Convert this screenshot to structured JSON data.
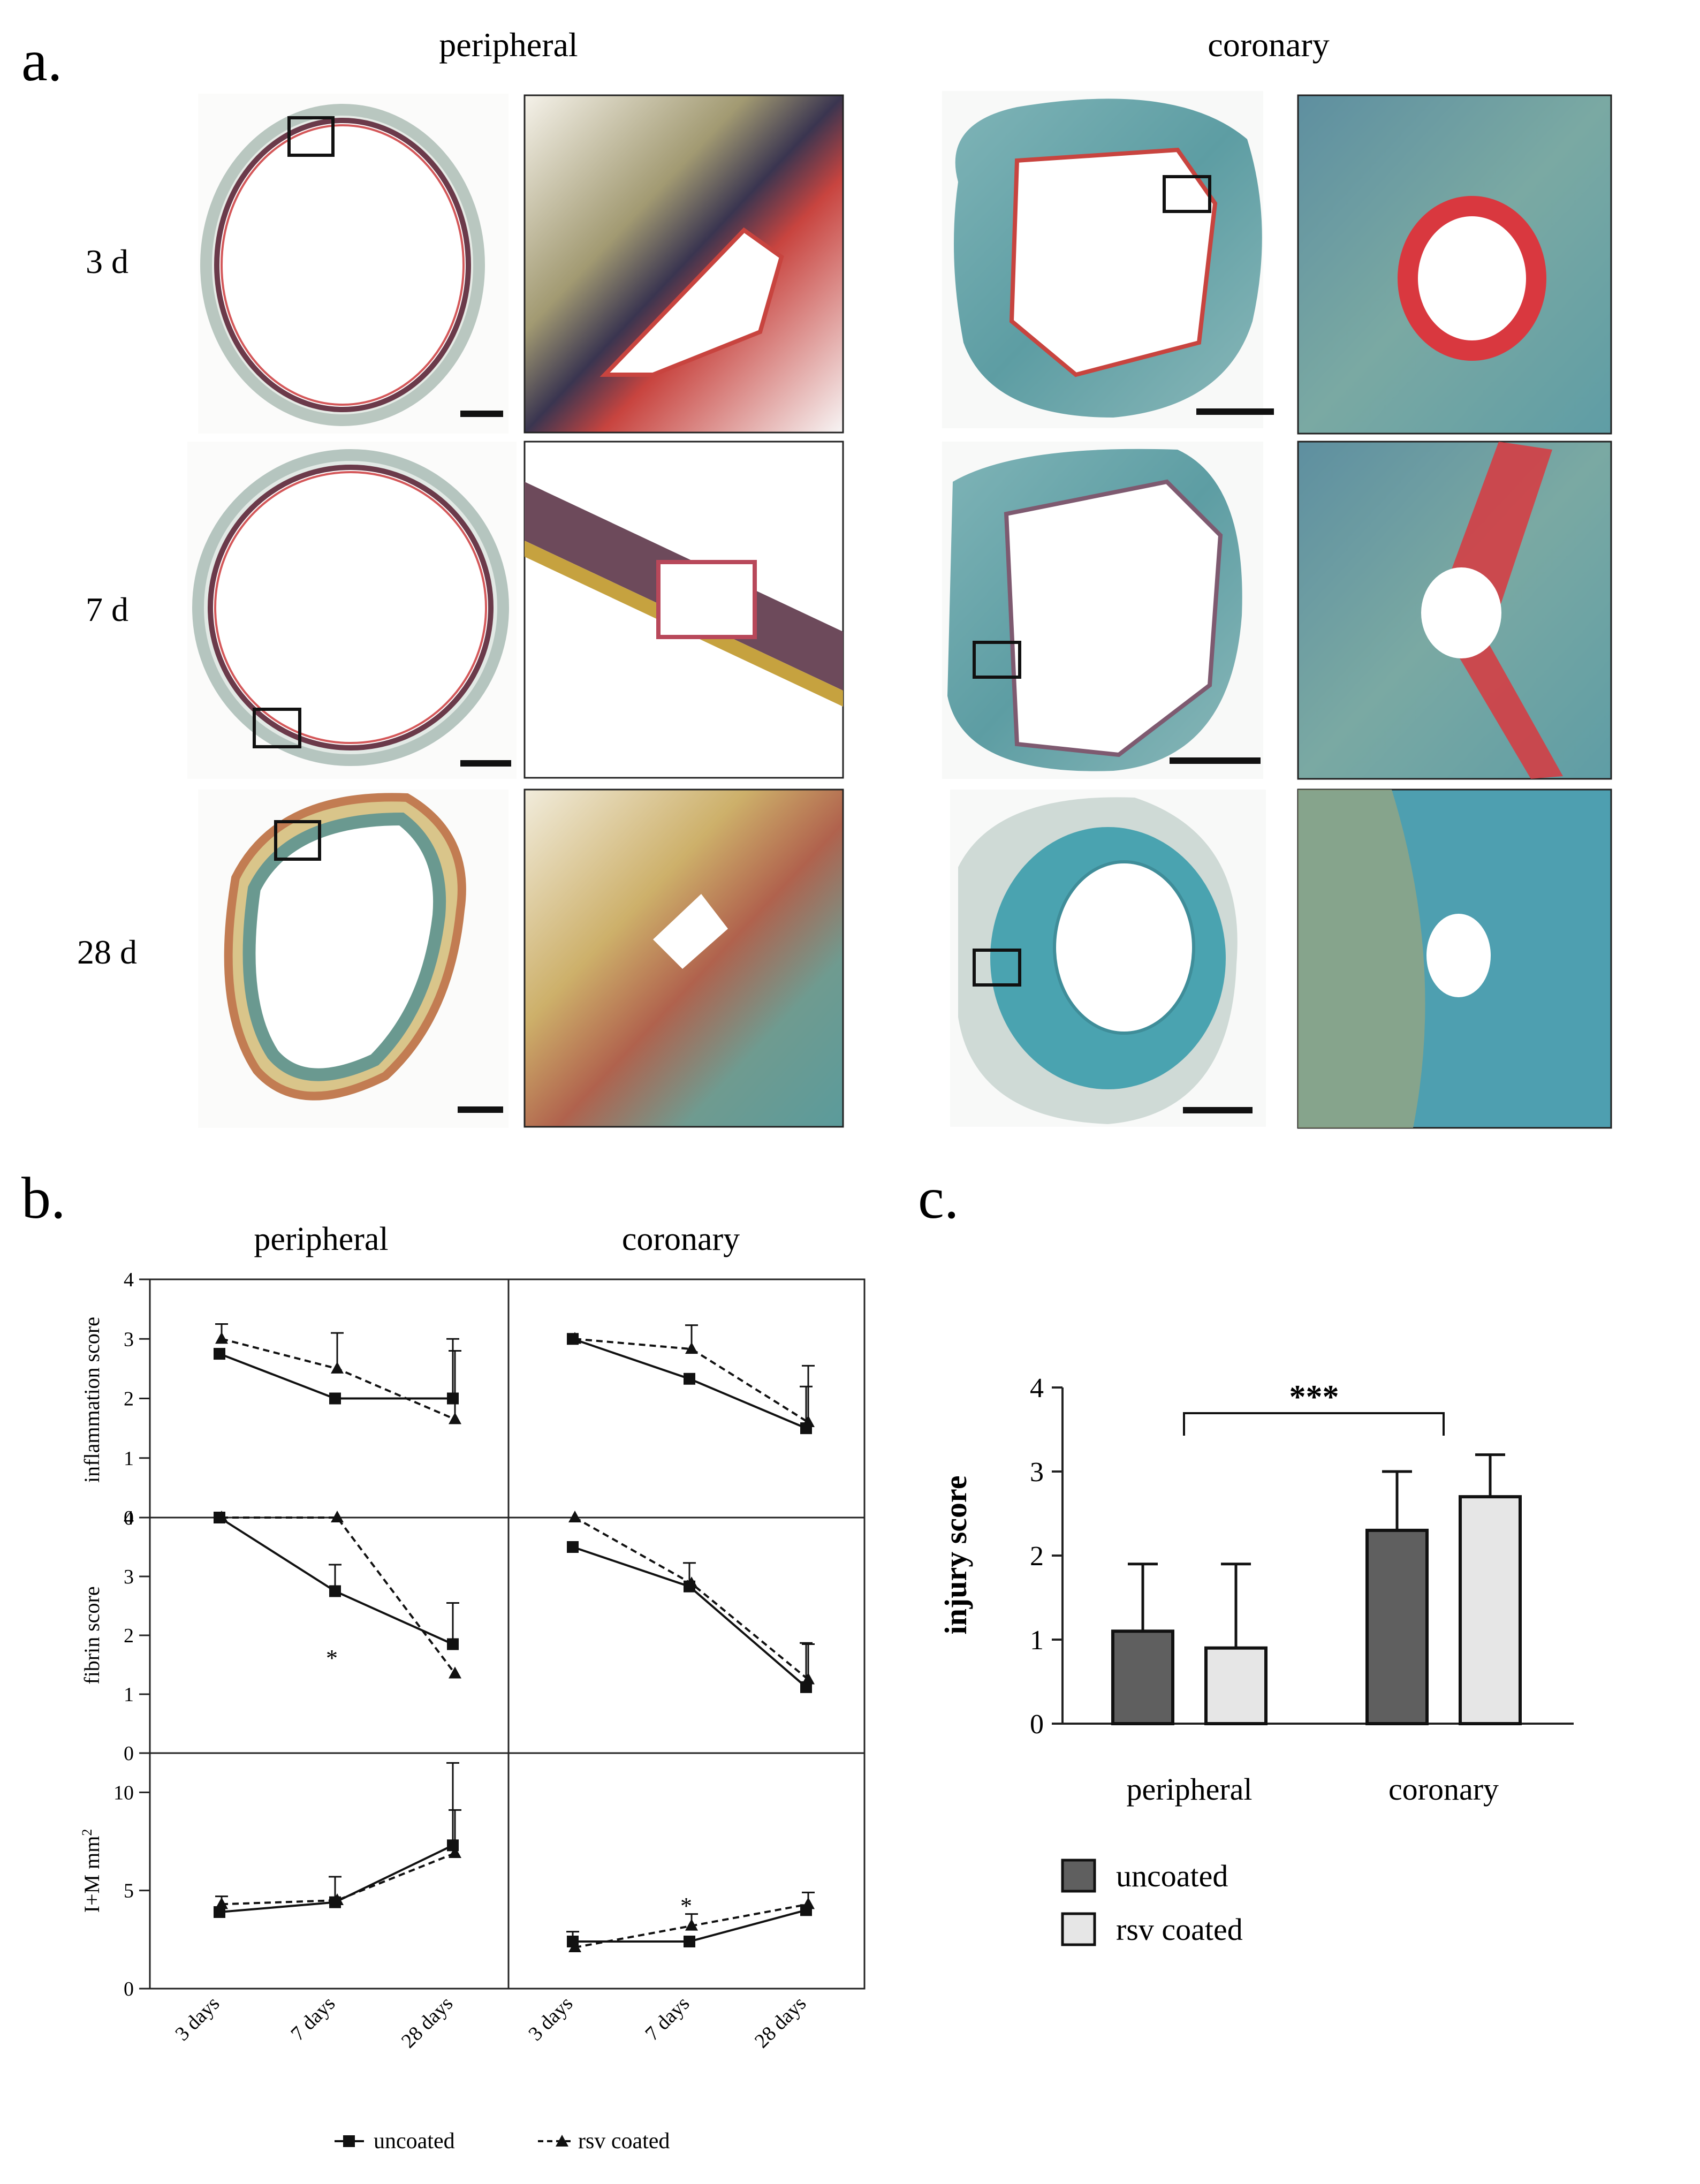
{
  "panel_a": {
    "label": "a.",
    "column_headers": [
      "peripheral",
      "coronary"
    ],
    "row_labels": [
      "3 d",
      "7 d",
      "28 d"
    ]
  },
  "panel_b": {
    "label": "b.",
    "column_headers": [
      "peripheral",
      "coronary"
    ],
    "x_ticks": [
      "3 days",
      "7 days",
      "28 days"
    ],
    "rows": [
      {
        "ylabel": "inflammation score",
        "yticks": [
          "0",
          "1",
          "2",
          "3",
          "4"
        ],
        "ylim": [
          0,
          4
        ]
      },
      {
        "ylabel": "fibrin score",
        "yticks": [
          "0",
          "1",
          "2",
          "3",
          "4"
        ],
        "ylim": [
          0,
          4
        ]
      },
      {
        "ylabel": "I+M mm",
        "ylabel_sup": "2",
        "yticks": [
          "0",
          "5",
          "10"
        ],
        "ylim": [
          0,
          12
        ]
      }
    ],
    "legend": {
      "uncoated": "uncoated",
      "rsv_coated": "rsv coated"
    },
    "annotation": "*"
  },
  "panel_c": {
    "label": "c.",
    "ylabel": "injury score",
    "yticks": [
      "0",
      "1",
      "2",
      "3",
      "4"
    ],
    "significance": "***",
    "legend": {
      "uncoated": "uncoated",
      "rsv_coated": "rsv coated"
    }
  },
  "colors": {
    "uncoated_bar": "#5f5f5f",
    "rsv_bar": "#e6e6e6",
    "line": "#111111",
    "panel_border": "#222222"
  },
  "chart_data": [
    {
      "type": "line",
      "panel": "b",
      "subpanel": "peripheral",
      "ylabel": "inflammation score",
      "categories": [
        "3 days",
        "7 days",
        "28 days"
      ],
      "ylim": [
        0,
        4
      ],
      "series": [
        {
          "name": "uncoated",
          "values": [
            2.75,
            2.0,
            2.0
          ],
          "err": [
            0.0,
            0.0,
            1.0
          ]
        },
        {
          "name": "rsv coated",
          "values": [
            3.0,
            2.5,
            1.65
          ],
          "err": [
            0.25,
            0.6,
            1.15
          ]
        }
      ]
    },
    {
      "type": "line",
      "panel": "b",
      "subpanel": "coronary",
      "ylabel": "inflammation score",
      "categories": [
        "3 days",
        "7 days",
        "28 days"
      ],
      "ylim": [
        0,
        4
      ],
      "series": [
        {
          "name": "uncoated",
          "values": [
            3.0,
            2.33,
            1.5
          ],
          "err": [
            0.0,
            0.0,
            0.7
          ]
        },
        {
          "name": "rsv coated",
          "values": [
            3.0,
            2.83,
            1.6
          ],
          "err": [
            0.0,
            0.4,
            0.95
          ]
        }
      ]
    },
    {
      "type": "line",
      "panel": "b",
      "subpanel": "peripheral",
      "ylabel": "fibrin score",
      "categories": [
        "3 days",
        "7 days",
        "28 days"
      ],
      "ylim": [
        0,
        4
      ],
      "series": [
        {
          "name": "uncoated",
          "values": [
            4.0,
            2.75,
            1.85
          ],
          "err": [
            0.0,
            0.45,
            0.7
          ]
        },
        {
          "name": "rsv coated",
          "values": [
            4.0,
            4.0,
            1.35
          ],
          "err": [
            0.0,
            0.0,
            0.0
          ]
        }
      ]
    },
    {
      "type": "line",
      "panel": "b",
      "subpanel": "coronary",
      "ylabel": "fibrin score",
      "categories": [
        "3 days",
        "7 days",
        "28 days"
      ],
      "ylim": [
        0,
        4
      ],
      "series": [
        {
          "name": "uncoated",
          "values": [
            3.5,
            2.83,
            1.12
          ],
          "err": [
            0.0,
            0.4,
            0.75
          ]
        },
        {
          "name": "rsv coated",
          "values": [
            4.0,
            2.88,
            1.25
          ],
          "err": [
            0.0,
            0.0,
            0.6
          ]
        }
      ]
    },
    {
      "type": "line",
      "panel": "b",
      "subpanel": "peripheral",
      "ylabel": "I+M mm2",
      "categories": [
        "3 days",
        "7 days",
        "28 days"
      ],
      "ylim": [
        0,
        12
      ],
      "series": [
        {
          "name": "uncoated",
          "values": [
            3.9,
            4.4,
            7.3
          ],
          "err": [
            0.0,
            1.3,
            4.2
          ]
        },
        {
          "name": "rsv coated",
          "values": [
            4.3,
            4.5,
            6.9
          ],
          "err": [
            0.4,
            0.0,
            2.2
          ]
        }
      ]
    },
    {
      "type": "line",
      "panel": "b",
      "subpanel": "coronary",
      "ylabel": "I+M mm2",
      "categories": [
        "3 days",
        "7 days",
        "28 days"
      ],
      "ylim": [
        0,
        12
      ],
      "series": [
        {
          "name": "uncoated",
          "values": [
            2.4,
            2.4,
            4.0
          ],
          "err": [
            0.5,
            0.0,
            0.0
          ]
        },
        {
          "name": "rsv coated",
          "values": [
            2.1,
            3.2,
            4.3
          ],
          "err": [
            0.0,
            0.6,
            0.6
          ]
        }
      ]
    },
    {
      "type": "bar",
      "panel": "c",
      "ylabel": "injury score",
      "categories": [
        "peripheral",
        "coronary"
      ],
      "ylim": [
        0,
        4
      ],
      "series": [
        {
          "name": "uncoated",
          "values": [
            1.1,
            2.3
          ],
          "err": [
            0.8,
            0.7
          ]
        },
        {
          "name": "rsv coated",
          "values": [
            0.9,
            2.7
          ],
          "err": [
            1.0,
            0.5
          ]
        }
      ]
    }
  ]
}
